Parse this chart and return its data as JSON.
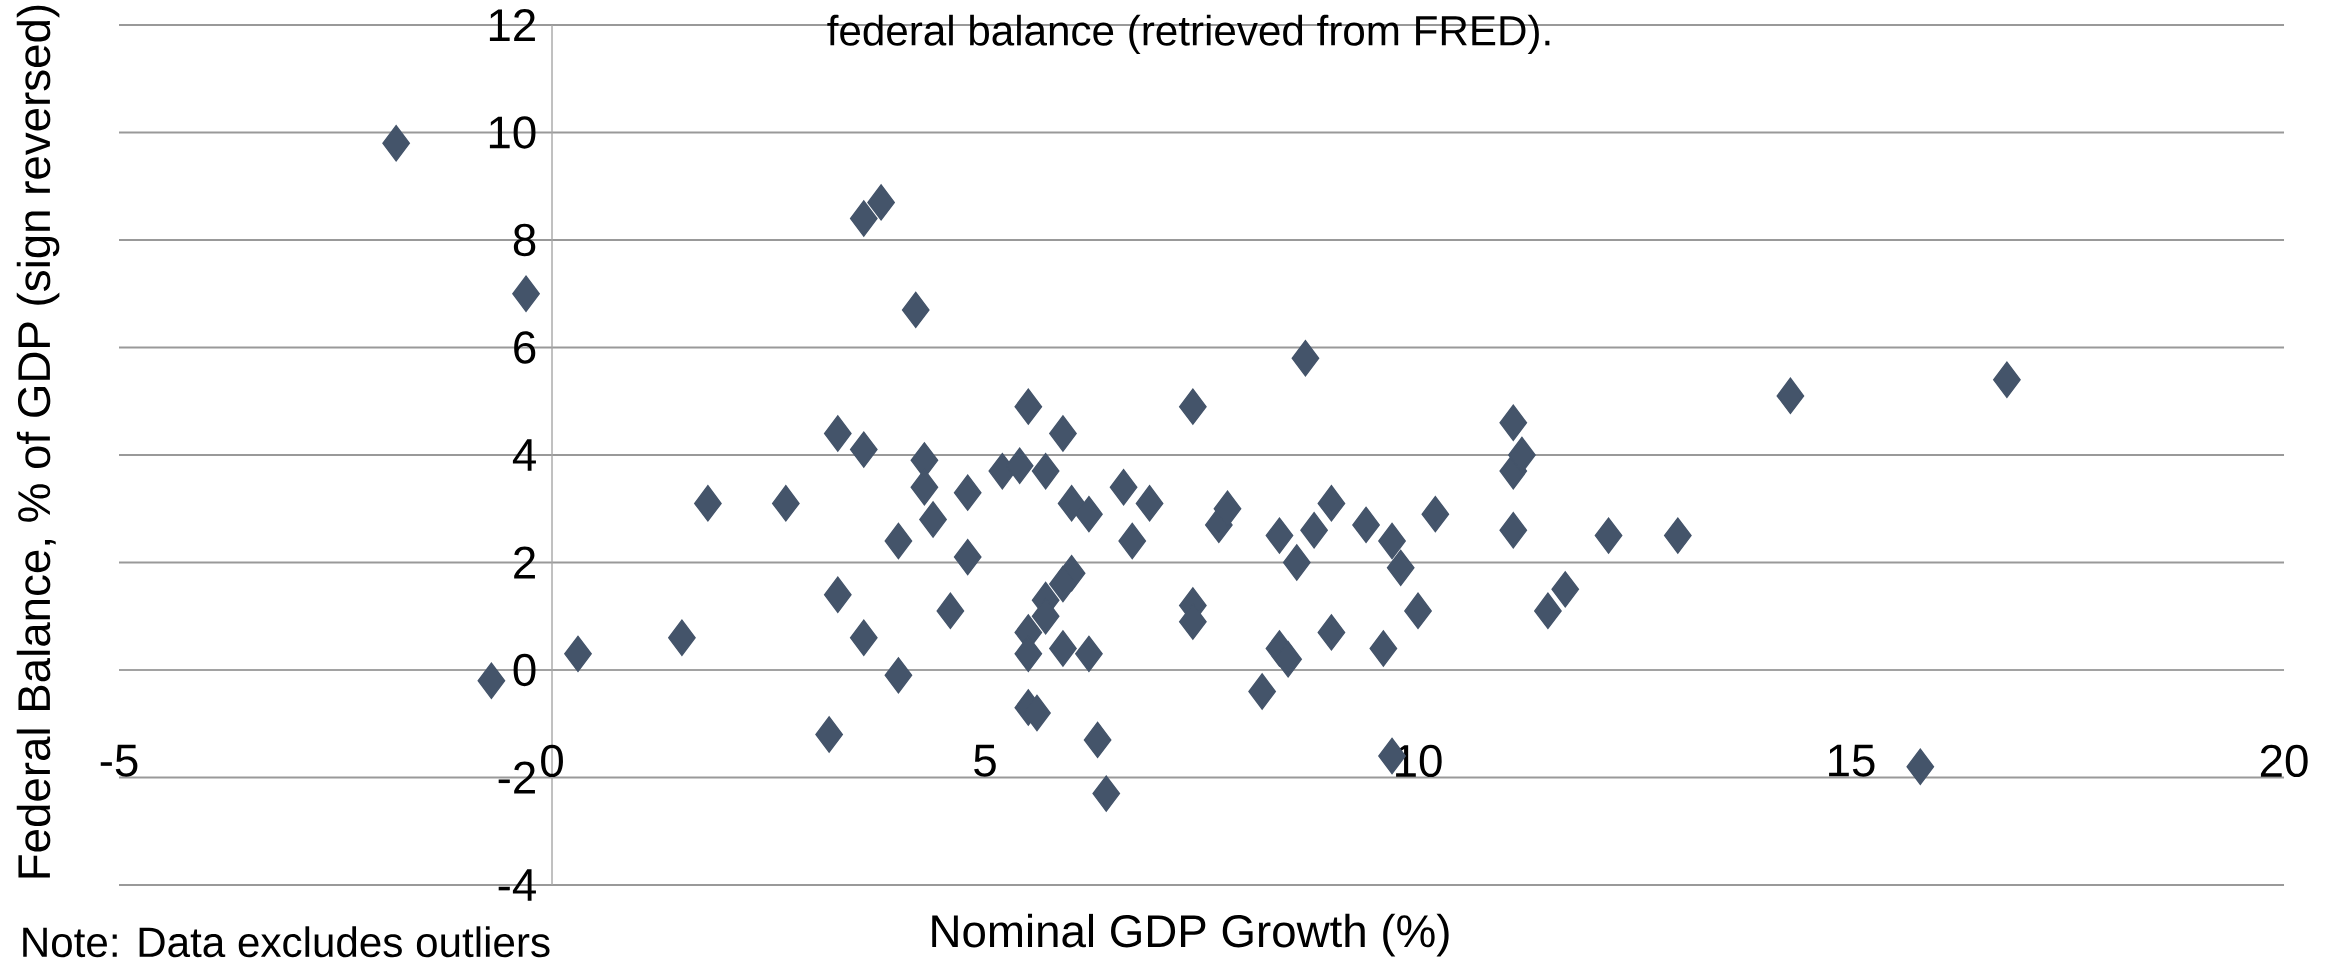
{
  "chart_data": {
    "type": "scatter",
    "title": "federal balance (retrieved from FRED).",
    "xlabel": "Nominal GDP Growth (%)",
    "ylabel": "Federal Balance, % of GDP (sign reversed)",
    "annotations": [
      "Note: Data excludes outliers"
    ],
    "x": [
      -1.8,
      -0.3,
      -0.7,
      0.3,
      1.5,
      1.8,
      2.7,
      3.2,
      3.3,
      3.3,
      3.6,
      3.8,
      3.6,
      3.6,
      4.0,
      4.0,
      4.2,
      4.3,
      4.3,
      4.4,
      4.6,
      4.8,
      4.8,
      5.2,
      5.4,
      5.5,
      5.7,
      5.9,
      6.0,
      6.2,
      6.0,
      5.9,
      5.7,
      5.7,
      5.5,
      5.5,
      5.5,
      5.6,
      5.9,
      6.2,
      6.3,
      6.4,
      6.6,
      6.7,
      6.9,
      7.4,
      7.4,
      7.4,
      7.7,
      7.8,
      8.2,
      8.4,
      8.4,
      8.5,
      8.6,
      8.7,
      8.8,
      9.0,
      9.0,
      9.4,
      9.6,
      9.7,
      9.7,
      9.8,
      10.0,
      10.2,
      11.1,
      11.1,
      11.2,
      11.1,
      11.5,
      11.7,
      12.2,
      13.0,
      14.3,
      15.8,
      16.8
    ],
    "series": [
      {
        "color": "#44546a",
        "values": [
          9.8,
          7.0,
          -0.2,
          0.3,
          0.6,
          3.1,
          3.1,
          -1.2,
          4.4,
          1.4,
          8.4,
          8.7,
          4.1,
          0.6,
          2.4,
          -0.1,
          6.7,
          3.9,
          3.4,
          2.8,
          1.1,
          3.3,
          2.1,
          3.7,
          3.8,
          4.9,
          3.7,
          4.4,
          3.1,
          2.9,
          1.8,
          1.6,
          1.3,
          1.0,
          0.7,
          0.3,
          -0.7,
          -0.8,
          0.4,
          0.3,
          -1.3,
          -2.3,
          3.4,
          2.4,
          3.1,
          4.9,
          1.2,
          0.9,
          2.7,
          3.0,
          -0.4,
          2.5,
          0.4,
          0.2,
          2.0,
          5.8,
          2.6,
          0.7,
          3.1,
          2.7,
          0.4,
          2.4,
          -1.6,
          1.9,
          1.1,
          2.9,
          4.6,
          3.7,
          4.0,
          2.6,
          1.1,
          1.5,
          2.5,
          2.5,
          5.1,
          -1.8,
          5.4
        ]
      }
    ],
    "xlim": [
      -5,
      20
    ],
    "xticks": [
      -5,
      0,
      5,
      10,
      15,
      20
    ],
    "ylim": [
      -4,
      12
    ],
    "yticks": [
      -4,
      -2,
      0,
      2,
      4,
      6,
      8,
      10,
      12
    ],
    "grid": "y",
    "marker": "diamond"
  }
}
